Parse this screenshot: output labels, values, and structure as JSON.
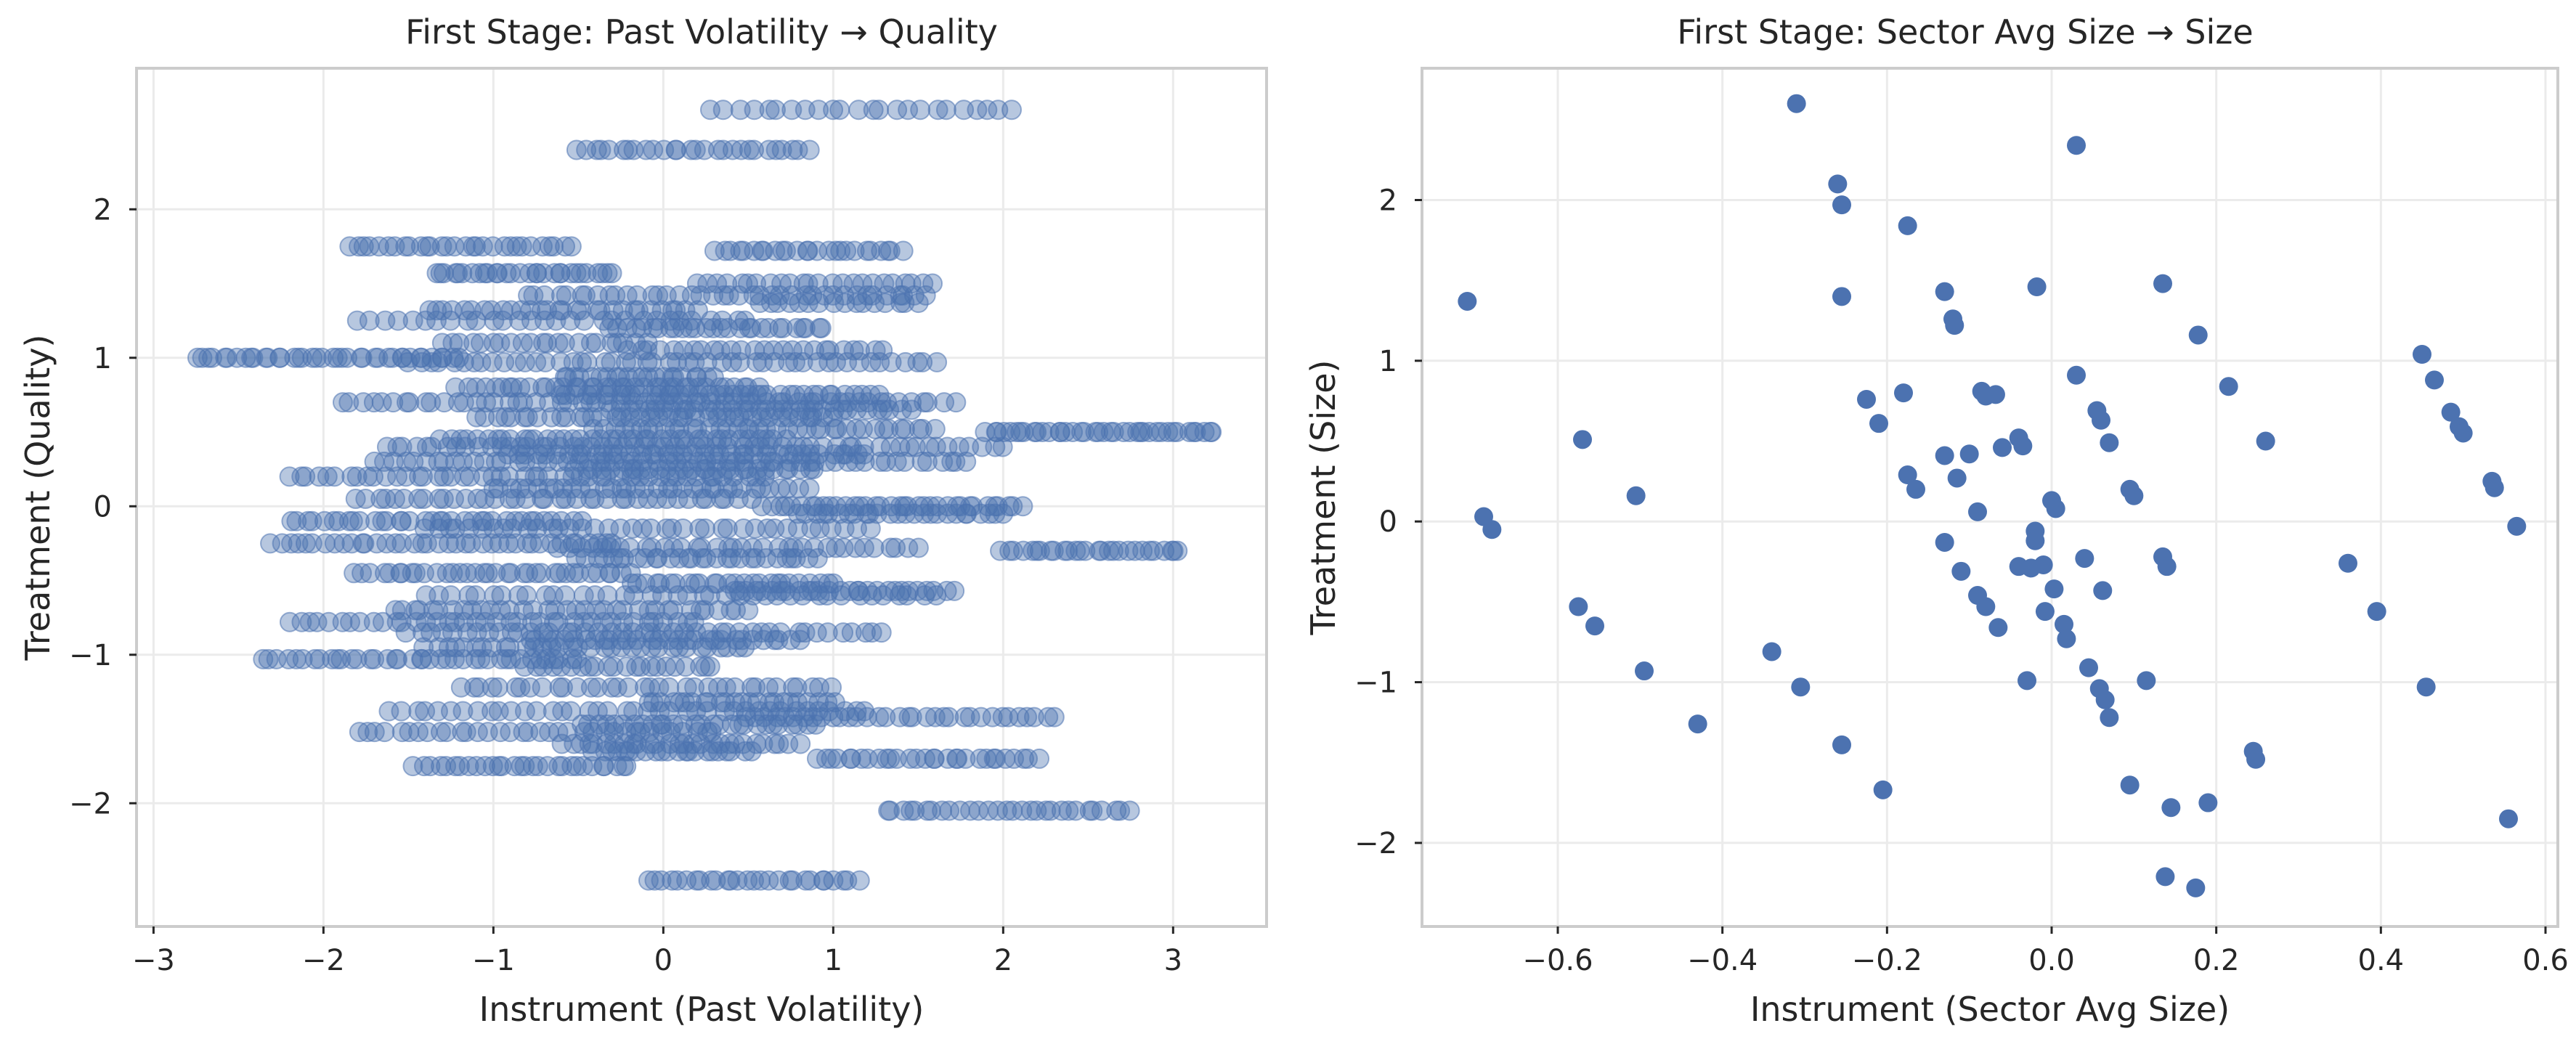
{
  "figure": {
    "background": "#ffffff",
    "panel_border": "#cccccc",
    "grid_color": "#ebebeb",
    "point_color": "#4c72b0"
  },
  "chart_data": [
    {
      "type": "scatter",
      "title": "First Stage: Past Volatility → Quality",
      "xlabel": "Instrument (Past Volatility)",
      "ylabel": "Treatment (Quality)",
      "xlim": [
        -3.1,
        3.55
      ],
      "ylim": [
        -2.83,
        2.95
      ],
      "xticks": [
        -3,
        -2,
        -1,
        0,
        1,
        2,
        3
      ],
      "yticks": [
        -2,
        -1,
        0,
        1,
        2
      ],
      "grid": true,
      "point_alpha": 0.4,
      "bands": [
        {
          "y": 2.67,
          "x": [
            0.3,
            2.05
          ],
          "n": 24
        },
        {
          "y": 2.4,
          "x": [
            -0.5,
            0.85
          ],
          "n": 28
        },
        {
          "y": 1.75,
          "x": [
            -1.85,
            -0.55
          ],
          "n": 30
        },
        {
          "y": 1.72,
          "x": [
            0.3,
            1.4
          ],
          "n": 26
        },
        {
          "y": 1.57,
          "x": [
            -1.35,
            -0.3
          ],
          "n": 30
        },
        {
          "y": 1.5,
          "x": [
            0.2,
            1.6
          ],
          "n": 24
        },
        {
          "y": 1.42,
          "x": [
            -0.8,
            1.55
          ],
          "n": 40
        },
        {
          "y": 1.37,
          "x": [
            0.55,
            1.5
          ],
          "n": 16
        },
        {
          "y": 1.32,
          "x": [
            -1.4,
            0.2
          ],
          "n": 30
        },
        {
          "y": 1.25,
          "x": [
            -1.8,
            0.5
          ],
          "n": 30
        },
        {
          "y": 1.2,
          "x": [
            -0.3,
            0.95
          ],
          "n": 28
        },
        {
          "y": 1.1,
          "x": [
            -1.3,
            -0.1
          ],
          "n": 22
        },
        {
          "y": 1.05,
          "x": [
            -0.2,
            1.3
          ],
          "n": 26
        },
        {
          "y": 1.0,
          "x": [
            -2.75,
            -1.2
          ],
          "n": 40
        },
        {
          "y": 0.97,
          "x": [
            -1.5,
            1.6
          ],
          "n": 50
        },
        {
          "y": 0.87,
          "x": [
            -0.6,
            0.3
          ],
          "n": 22
        },
        {
          "y": 0.8,
          "x": [
            -1.2,
            0.55
          ],
          "n": 38
        },
        {
          "y": 0.75,
          "x": [
            -0.6,
            1.25
          ],
          "n": 40
        },
        {
          "y": 0.7,
          "x": [
            -1.9,
            1.7
          ],
          "n": 60
        },
        {
          "y": 0.65,
          "x": [
            -0.3,
            1.45
          ],
          "n": 36
        },
        {
          "y": 0.6,
          "x": [
            -1.1,
            1.0
          ],
          "n": 40
        },
        {
          "y": 0.52,
          "x": [
            -0.4,
            1.6
          ],
          "n": 40
        },
        {
          "y": 0.5,
          "x": [
            1.9,
            3.25
          ],
          "n": 40
        },
        {
          "y": 0.45,
          "x": [
            -1.3,
            0.7
          ],
          "n": 40
        },
        {
          "y": 0.4,
          "x": [
            -1.65,
            2.0
          ],
          "n": 60
        },
        {
          "y": 0.35,
          "x": [
            -0.9,
            1.2
          ],
          "n": 40
        },
        {
          "y": 0.3,
          "x": [
            -1.7,
            1.8
          ],
          "n": 60
        },
        {
          "y": 0.25,
          "x": [
            -0.5,
            0.9
          ],
          "n": 30
        },
        {
          "y": 0.2,
          "x": [
            -2.2,
            0.6
          ],
          "n": 50
        },
        {
          "y": 0.12,
          "x": [
            -1.0,
            0.85
          ],
          "n": 36
        },
        {
          "y": 0.05,
          "x": [
            -1.8,
            0.5
          ],
          "n": 40
        },
        {
          "y": 0.0,
          "x": [
            0.6,
            2.1
          ],
          "n": 36
        },
        {
          "y": -0.05,
          "x": [
            0.8,
            2.0
          ],
          "n": 26
        },
        {
          "y": -0.1,
          "x": [
            -2.2,
            -0.5
          ],
          "n": 36
        },
        {
          "y": -0.15,
          "x": [
            -1.4,
            1.2
          ],
          "n": 40
        },
        {
          "y": -0.25,
          "x": [
            -2.3,
            -0.3
          ],
          "n": 40
        },
        {
          "y": -0.28,
          "x": [
            -0.6,
            1.5
          ],
          "n": 36
        },
        {
          "y": -0.3,
          "x": [
            2.0,
            3.05
          ],
          "n": 28
        },
        {
          "y": -0.35,
          "x": [
            -0.5,
            0.9
          ],
          "n": 30
        },
        {
          "y": -0.45,
          "x": [
            -1.8,
            -0.2
          ],
          "n": 36
        },
        {
          "y": -0.52,
          "x": [
            -0.2,
            1.0
          ],
          "n": 26
        },
        {
          "y": -0.57,
          "x": [
            0.4,
            1.7
          ],
          "n": 28
        },
        {
          "y": -0.6,
          "x": [
            -1.4,
            1.6
          ],
          "n": 40
        },
        {
          "y": -0.7,
          "x": [
            -1.6,
            0.5
          ],
          "n": 36
        },
        {
          "y": -0.78,
          "x": [
            -2.2,
            0.2
          ],
          "n": 40
        },
        {
          "y": -0.85,
          "x": [
            -1.5,
            1.3
          ],
          "n": 44
        },
        {
          "y": -0.9,
          "x": [
            -0.8,
            0.8
          ],
          "n": 30
        },
        {
          "y": -0.95,
          "x": [
            -1.4,
            0.5
          ],
          "n": 34
        },
        {
          "y": -1.03,
          "x": [
            -2.35,
            -0.5
          ],
          "n": 40
        },
        {
          "y": -1.08,
          "x": [
            -0.8,
            0.3
          ],
          "n": 22
        },
        {
          "y": -1.22,
          "x": [
            -1.2,
            1.0
          ],
          "n": 36
        },
        {
          "y": -1.32,
          "x": [
            -0.1,
            1.0
          ],
          "n": 24
        },
        {
          "y": -1.38,
          "x": [
            -1.6,
            1.2
          ],
          "n": 40
        },
        {
          "y": -1.42,
          "x": [
            0.5,
            2.3
          ],
          "n": 34
        },
        {
          "y": -1.47,
          "x": [
            -0.5,
            0.9
          ],
          "n": 28
        },
        {
          "y": -1.52,
          "x": [
            -1.8,
            0.3
          ],
          "n": 36
        },
        {
          "y": -1.6,
          "x": [
            -0.6,
            0.8
          ],
          "n": 28
        },
        {
          "y": -1.65,
          "x": [
            -0.4,
            0.5
          ],
          "n": 22
        },
        {
          "y": -1.7,
          "x": [
            0.9,
            2.2
          ],
          "n": 30
        },
        {
          "y": -1.75,
          "x": [
            -1.45,
            -0.2
          ],
          "n": 30
        },
        {
          "y": -2.05,
          "x": [
            1.3,
            2.75
          ],
          "n": 30
        },
        {
          "y": -2.52,
          "x": [
            -0.1,
            1.15
          ],
          "n": 28
        }
      ]
    },
    {
      "type": "scatter",
      "title": "First Stage: Sector Avg Size → Size",
      "xlabel": "Instrument (Sector Avg Size)",
      "ylabel": "Treatment (Size)",
      "xlim": [
        -0.765,
        0.615
      ],
      "ylim": [
        -2.52,
        2.82
      ],
      "xticks": [
        -0.6,
        -0.4,
        -0.2,
        0.0,
        0.2,
        0.4,
        0.6
      ],
      "xtick_labels": [
        "−0.6",
        "−0.4",
        "−0.2",
        "0.0",
        "0.2",
        "0.4",
        "0.6"
      ],
      "yticks": [
        -2,
        -1,
        0,
        1,
        2
      ],
      "grid": true,
      "point_alpha": 1.0,
      "points": [
        [
          -0.71,
          1.37
        ],
        [
          -0.69,
          0.03
        ],
        [
          -0.68,
          -0.05
        ],
        [
          -0.57,
          0.51
        ],
        [
          -0.575,
          -0.53
        ],
        [
          -0.555,
          -0.65
        ],
        [
          -0.505,
          0.16
        ],
        [
          -0.495,
          -0.93
        ],
        [
          -0.43,
          -1.26
        ],
        [
          -0.34,
          -0.81
        ],
        [
          -0.31,
          2.6
        ],
        [
          -0.305,
          -1.03
        ],
        [
          -0.26,
          2.1
        ],
        [
          -0.255,
          1.97
        ],
        [
          -0.255,
          1.4
        ],
        [
          -0.255,
          -1.39
        ],
        [
          -0.225,
          0.76
        ],
        [
          -0.21,
          0.61
        ],
        [
          -0.205,
          -1.67
        ],
        [
          -0.18,
          0.8
        ],
        [
          -0.175,
          1.84
        ],
        [
          -0.175,
          0.29
        ],
        [
          -0.165,
          0.2
        ],
        [
          -0.13,
          1.43
        ],
        [
          -0.13,
          0.41
        ],
        [
          -0.13,
          -0.13
        ],
        [
          -0.12,
          1.26
        ],
        [
          -0.118,
          1.22
        ],
        [
          -0.115,
          0.27
        ],
        [
          -0.11,
          -0.31
        ],
        [
          -0.1,
          0.42
        ],
        [
          -0.09,
          0.06
        ],
        [
          -0.09,
          -0.46
        ],
        [
          -0.085,
          0.81
        ],
        [
          -0.08,
          0.78
        ],
        [
          -0.08,
          -0.53
        ],
        [
          -0.068,
          0.79
        ],
        [
          -0.065,
          -0.66
        ],
        [
          -0.06,
          0.46
        ],
        [
          -0.04,
          0.52
        ],
        [
          -0.04,
          -0.28
        ],
        [
          -0.035,
          0.47
        ],
        [
          -0.03,
          -0.99
        ],
        [
          -0.025,
          -0.29
        ],
        [
          -0.02,
          -0.06
        ],
        [
          -0.02,
          -0.12
        ],
        [
          -0.018,
          1.46
        ],
        [
          -0.01,
          -0.27
        ],
        [
          -0.008,
          -0.56
        ],
        [
          0.0,
          0.13
        ],
        [
          0.003,
          -0.42
        ],
        [
          0.005,
          0.08
        ],
        [
          0.015,
          -0.64
        ],
        [
          0.018,
          -0.73
        ],
        [
          0.03,
          2.34
        ],
        [
          0.03,
          0.91
        ],
        [
          0.04,
          -0.23
        ],
        [
          0.045,
          -0.91
        ],
        [
          0.055,
          0.69
        ],
        [
          0.058,
          -1.04
        ],
        [
          0.06,
          0.63
        ],
        [
          0.062,
          -0.43
        ],
        [
          0.065,
          -1.11
        ],
        [
          0.07,
          0.49
        ],
        [
          0.07,
          -1.22
        ],
        [
          0.095,
          -1.64
        ],
        [
          0.095,
          0.2
        ],
        [
          0.1,
          0.16
        ],
        [
          0.115,
          -0.99
        ],
        [
          0.135,
          1.48
        ],
        [
          0.135,
          -0.22
        ],
        [
          0.138,
          -2.21
        ],
        [
          0.14,
          -0.28
        ],
        [
          0.145,
          -1.78
        ],
        [
          0.175,
          -2.28
        ],
        [
          0.178,
          1.16
        ],
        [
          0.19,
          -1.75
        ],
        [
          0.215,
          0.84
        ],
        [
          0.245,
          -1.43
        ],
        [
          0.248,
          -1.48
        ],
        [
          0.26,
          0.5
        ],
        [
          0.36,
          -0.26
        ],
        [
          0.395,
          -0.56
        ],
        [
          0.45,
          1.04
        ],
        [
          0.455,
          -1.03
        ],
        [
          0.465,
          0.88
        ],
        [
          0.485,
          0.68
        ],
        [
          0.495,
          0.59
        ],
        [
          0.5,
          0.55
        ],
        [
          0.535,
          0.25
        ],
        [
          0.538,
          0.21
        ],
        [
          0.555,
          -1.85
        ],
        [
          0.565,
          -0.03
        ]
      ]
    }
  ]
}
